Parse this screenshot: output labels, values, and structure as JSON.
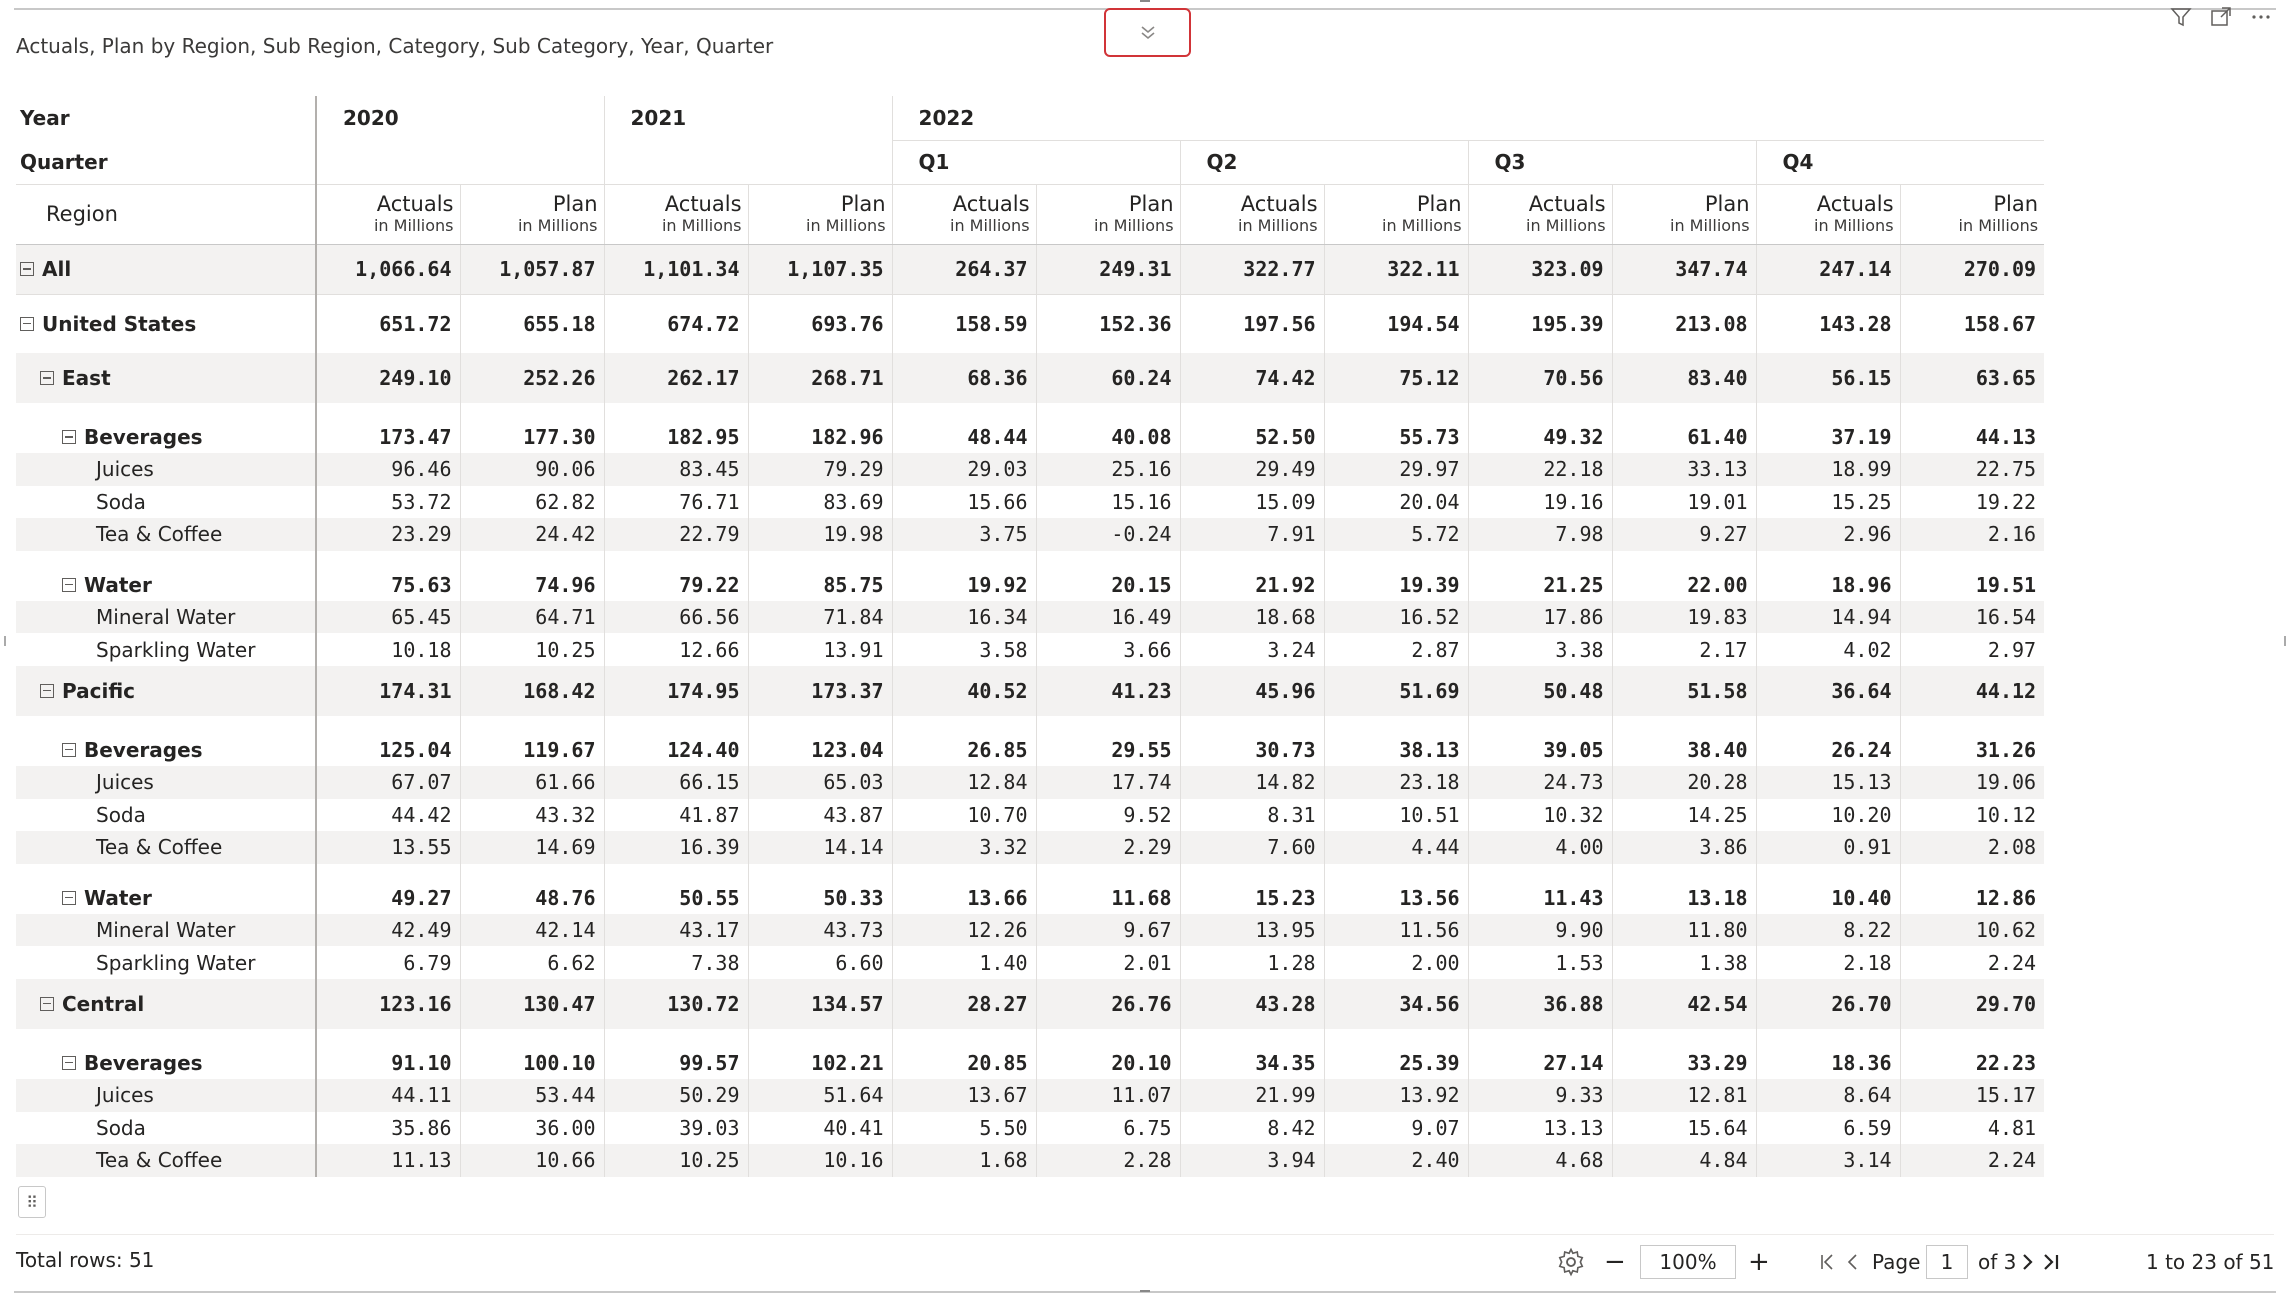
{
  "visual": {
    "title": "Actuals, Plan by Region, Sub Region, Category, Sub Category, Year, Quarter"
  },
  "header": {
    "year_label": "Year",
    "quarter_label": "Quarter",
    "region_label": "Region",
    "years": [
      "2020",
      "2021",
      "2022"
    ],
    "quarters": [
      "Q1",
      "Q2",
      "Q3",
      "Q4"
    ],
    "measures": [
      {
        "name": "Actuals",
        "unit": "in Millions"
      },
      {
        "name": "Plan",
        "unit": "in Millions"
      }
    ]
  },
  "rows": [
    {
      "label": "All",
      "level": 0,
      "expandable": true,
      "values": [
        "1,066.64",
        "1,057.87",
        "1,101.34",
        "1,107.35",
        "264.37",
        "249.31",
        "322.77",
        "322.11",
        "323.09",
        "347.74",
        "247.14",
        "270.09"
      ]
    },
    {
      "label": "United States",
      "level": 1,
      "expandable": true,
      "values": [
        "651.72",
        "655.18",
        "674.72",
        "693.76",
        "158.59",
        "152.36",
        "197.56",
        "194.54",
        "195.39",
        "213.08",
        "143.28",
        "158.67"
      ]
    },
    {
      "label": "East",
      "level": 2,
      "expandable": true,
      "values": [
        "249.10",
        "252.26",
        "262.17",
        "268.71",
        "68.36",
        "60.24",
        "74.42",
        "75.12",
        "70.56",
        "83.40",
        "56.15",
        "63.65"
      ]
    },
    {
      "label": "Beverages",
      "level": 3,
      "expandable": true,
      "values": [
        "173.47",
        "177.30",
        "182.95",
        "182.96",
        "48.44",
        "40.08",
        "52.50",
        "55.73",
        "49.32",
        "61.40",
        "37.19",
        "44.13"
      ]
    },
    {
      "label": "Juices",
      "level": 4,
      "values": [
        "96.46",
        "90.06",
        "83.45",
        "79.29",
        "29.03",
        "25.16",
        "29.49",
        "29.97",
        "22.18",
        "33.13",
        "18.99",
        "22.75"
      ]
    },
    {
      "label": "Soda",
      "level": 4,
      "values": [
        "53.72",
        "62.82",
        "76.71",
        "83.69",
        "15.66",
        "15.16",
        "15.09",
        "20.04",
        "19.16",
        "19.01",
        "15.25",
        "19.22"
      ]
    },
    {
      "label": "Tea & Coffee",
      "level": 4,
      "values": [
        "23.29",
        "24.42",
        "22.79",
        "19.98",
        "3.75",
        "-0.24",
        "7.91",
        "5.72",
        "7.98",
        "9.27",
        "2.96",
        "2.16"
      ]
    },
    {
      "label": "Water",
      "level": 3,
      "expandable": true,
      "values": [
        "75.63",
        "74.96",
        "79.22",
        "85.75",
        "19.92",
        "20.15",
        "21.92",
        "19.39",
        "21.25",
        "22.00",
        "18.96",
        "19.51"
      ]
    },
    {
      "label": "Mineral Water",
      "level": 4,
      "values": [
        "65.45",
        "64.71",
        "66.56",
        "71.84",
        "16.34",
        "16.49",
        "18.68",
        "16.52",
        "17.86",
        "19.83",
        "14.94",
        "16.54"
      ]
    },
    {
      "label": "Sparkling Water",
      "level": 4,
      "values": [
        "10.18",
        "10.25",
        "12.66",
        "13.91",
        "3.58",
        "3.66",
        "3.24",
        "2.87",
        "3.38",
        "2.17",
        "4.02",
        "2.97"
      ]
    },
    {
      "label": "Pacific",
      "level": 2,
      "expandable": true,
      "values": [
        "174.31",
        "168.42",
        "174.95",
        "173.37",
        "40.52",
        "41.23",
        "45.96",
        "51.69",
        "50.48",
        "51.58",
        "36.64",
        "44.12"
      ]
    },
    {
      "label": "Beverages",
      "level": 3,
      "expandable": true,
      "values": [
        "125.04",
        "119.67",
        "124.40",
        "123.04",
        "26.85",
        "29.55",
        "30.73",
        "38.13",
        "39.05",
        "38.40",
        "26.24",
        "31.26"
      ]
    },
    {
      "label": "Juices",
      "level": 4,
      "values": [
        "67.07",
        "61.66",
        "66.15",
        "65.03",
        "12.84",
        "17.74",
        "14.82",
        "23.18",
        "24.73",
        "20.28",
        "15.13",
        "19.06"
      ]
    },
    {
      "label": "Soda",
      "level": 4,
      "values": [
        "44.42",
        "43.32",
        "41.87",
        "43.87",
        "10.70",
        "9.52",
        "8.31",
        "10.51",
        "10.32",
        "14.25",
        "10.20",
        "10.12"
      ]
    },
    {
      "label": "Tea & Coffee",
      "level": 4,
      "values": [
        "13.55",
        "14.69",
        "16.39",
        "14.14",
        "3.32",
        "2.29",
        "7.60",
        "4.44",
        "4.00",
        "3.86",
        "0.91",
        "2.08"
      ]
    },
    {
      "label": "Water",
      "level": 3,
      "expandable": true,
      "values": [
        "49.27",
        "48.76",
        "50.55",
        "50.33",
        "13.66",
        "11.68",
        "15.23",
        "13.56",
        "11.43",
        "13.18",
        "10.40",
        "12.86"
      ]
    },
    {
      "label": "Mineral Water",
      "level": 4,
      "values": [
        "42.49",
        "42.14",
        "43.17",
        "43.73",
        "12.26",
        "9.67",
        "13.95",
        "11.56",
        "9.90",
        "11.80",
        "8.22",
        "10.62"
      ]
    },
    {
      "label": "Sparkling Water",
      "level": 4,
      "values": [
        "6.79",
        "6.62",
        "7.38",
        "6.60",
        "1.40",
        "2.01",
        "1.28",
        "2.00",
        "1.53",
        "1.38",
        "2.18",
        "2.24"
      ]
    },
    {
      "label": "Central",
      "level": 2,
      "expandable": true,
      "values": [
        "123.16",
        "130.47",
        "130.72",
        "134.57",
        "28.27",
        "26.76",
        "43.28",
        "34.56",
        "36.88",
        "42.54",
        "26.70",
        "29.70"
      ]
    },
    {
      "label": "Beverages",
      "level": 3,
      "expandable": true,
      "values": [
        "91.10",
        "100.10",
        "99.57",
        "102.21",
        "20.85",
        "20.10",
        "34.35",
        "25.39",
        "27.14",
        "33.29",
        "18.36",
        "22.23"
      ]
    },
    {
      "label": "Juices",
      "level": 4,
      "values": [
        "44.11",
        "53.44",
        "50.29",
        "51.64",
        "13.67",
        "11.07",
        "21.99",
        "13.92",
        "9.33",
        "12.81",
        "8.64",
        "15.17"
      ]
    },
    {
      "label": "Soda",
      "level": 4,
      "values": [
        "35.86",
        "36.00",
        "39.03",
        "40.41",
        "5.50",
        "6.75",
        "8.42",
        "9.07",
        "13.13",
        "15.64",
        "6.59",
        "4.81"
      ]
    },
    {
      "label": "Tea & Coffee",
      "level": 4,
      "values": [
        "11.13",
        "10.66",
        "10.25",
        "10.16",
        "1.68",
        "2.28",
        "3.94",
        "2.40",
        "4.68",
        "4.84",
        "3.14",
        "2.24"
      ]
    }
  ],
  "footer": {
    "total_rows": "Total rows: 51",
    "zoom": "100%",
    "page_label": "Page",
    "page_value": "1",
    "page_of": "of 3",
    "range": "1 to 23 of 51",
    "minus": "−",
    "plus": "+"
  },
  "icons": [
    "chevron-double-down-icon",
    "filter-icon",
    "focus-mode-icon",
    "more-options-icon",
    "settings-icon",
    "first-page-icon",
    "prev-page-icon",
    "next-page-icon",
    "last-page-icon",
    "drag-handle-icon",
    "collapse-icon"
  ]
}
